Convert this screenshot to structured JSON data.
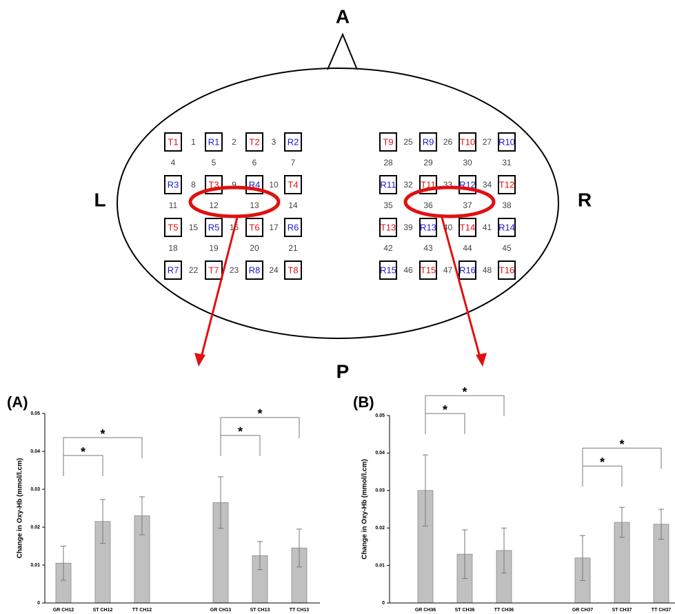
{
  "diagram": {
    "labels": {
      "anterior": "A",
      "left": "L",
      "right": "R",
      "posterior": "P"
    },
    "left_grid": {
      "optodes": [
        [
          "T1",
          "R1",
          "T2",
          "R2"
        ],
        [
          "R3",
          "T3",
          "R4",
          "T4"
        ],
        [
          "T5",
          "R5",
          "T6",
          "R6"
        ],
        [
          "R7",
          "T7",
          "R8",
          "T8"
        ]
      ],
      "row_channels": [
        [
          1,
          2,
          3
        ],
        [
          8,
          9,
          10
        ],
        [
          15,
          16,
          17
        ],
        [
          22,
          23,
          24
        ]
      ],
      "between_channels": [
        [
          4,
          5,
          6,
          7
        ],
        [
          11,
          12,
          13,
          14
        ],
        [
          18,
          19,
          20,
          21
        ]
      ]
    },
    "right_grid": {
      "optodes": [
        [
          "T9",
          "R9",
          "T10",
          "R10"
        ],
        [
          "R11",
          "T11",
          "R12",
          "T12"
        ],
        [
          "T13",
          "R13",
          "T14",
          "R14"
        ],
        [
          "R15",
          "T15",
          "R16",
          "T16"
        ]
      ],
      "row_channels": [
        [
          25,
          26,
          27
        ],
        [
          32,
          33,
          34
        ],
        [
          39,
          40,
          41
        ],
        [
          46,
          47,
          48
        ]
      ],
      "between_channels": [
        [
          28,
          29,
          30,
          31
        ],
        [
          35,
          36,
          37,
          38
        ],
        [
          42,
          43,
          44,
          45
        ]
      ]
    }
  },
  "chart_data": [
    {
      "type": "bar",
      "panel_label": "(A)",
      "y_label": "Change in Oxy-Hb (mmol/l.cm)",
      "categories": [
        "GR CH12",
        "ST CH12",
        "TT CH12",
        "GR CH13",
        "ST CH13",
        "TT CH13"
      ],
      "values": [
        0.0105,
        0.0215,
        0.023,
        0.0265,
        0.0125,
        0.0145
      ],
      "errors": [
        0.0045,
        0.0058,
        0.005,
        0.0068,
        0.0037,
        0.005
      ],
      "color": "#c0c0c0",
      "ylim": [
        0,
        0.05
      ],
      "yticks": [
        0,
        0.01,
        0.02,
        0.03,
        0.04,
        0.05
      ],
      "significance": [
        {
          "pair": [
            0,
            1
          ],
          "label": "*"
        },
        {
          "pair": [
            0,
            2
          ],
          "label": "*"
        },
        {
          "pair": [
            3,
            4
          ],
          "label": "*"
        },
        {
          "pair": [
            3,
            5
          ],
          "label": "*"
        }
      ]
    },
    {
      "type": "bar",
      "panel_label": "(B)",
      "y_label": "Change in Oxy-Hb (mmol/l.cm)",
      "categories": [
        "GR CH36",
        "ST CH36",
        "TT CH36",
        "GR CH37",
        "ST CH37",
        "TT CH37"
      ],
      "values": [
        0.03,
        0.013,
        0.014,
        0.012,
        0.0215,
        0.021
      ],
      "errors": [
        0.0095,
        0.0065,
        0.006,
        0.006,
        0.004,
        0.004
      ],
      "color": "#c0c0c0",
      "ylim": [
        0,
        0.05
      ],
      "yticks": [
        0,
        0.01,
        0.02,
        0.03,
        0.04,
        0.05
      ],
      "significance": [
        {
          "pair": [
            0,
            1
          ],
          "label": "*"
        },
        {
          "pair": [
            0,
            2
          ],
          "label": "*"
        },
        {
          "pair": [
            3,
            4
          ],
          "label": "*"
        },
        {
          "pair": [
            3,
            5
          ],
          "label": "*"
        }
      ]
    }
  ]
}
